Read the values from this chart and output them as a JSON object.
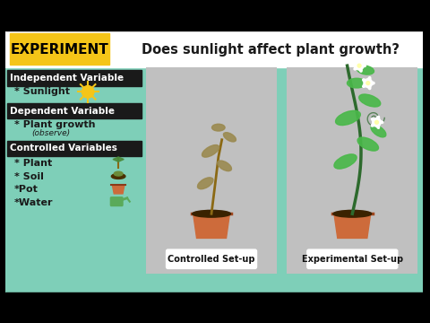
{
  "bg_outer": "#000000",
  "bg_teal": "#7ecfb8",
  "title_box_color": "#f5c518",
  "title_box_text": "EXPERIMENT",
  "title_box_text_color": "#000000",
  "header_bg": "#ffffff",
  "question_text": "Does sunlight affect plant growth?",
  "question_color": "#1a1a1a",
  "left_panel_bg": "#7ecfb8",
  "indep_var_label": "Independent Variable",
  "indep_var_item": "* Sunlight",
  "dep_var_label": "Dependent Variable",
  "dep_var_item": "* Plant growth",
  "dep_var_sub": "(observe)",
  "ctrl_var_label": "Controlled Variables",
  "ctrl_var_items": [
    "* Plant",
    "* Soil",
    "*Pot",
    "*Water"
  ],
  "section_label_bg": "#1a1a1a",
  "section_label_color": "#ffffff",
  "panel_bg": "#c8c8c8",
  "panel_border": "#222222",
  "controlled_caption": "Controlled Set-up",
  "experimental_caption": "Experimental Set-up",
  "caption_box_bg": "#ffffff",
  "caption_box_border": "#333333"
}
